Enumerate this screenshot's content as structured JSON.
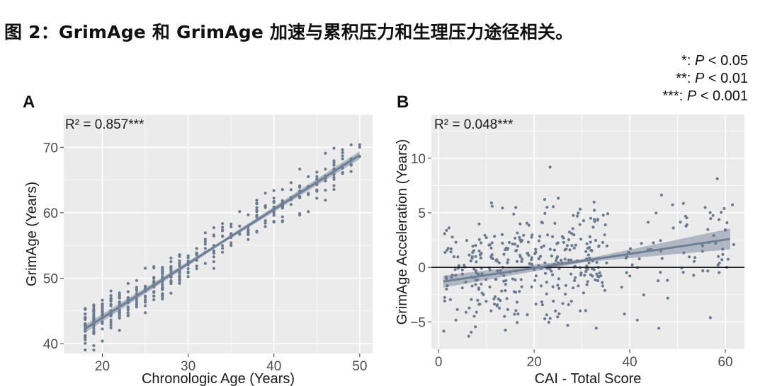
{
  "caption": "图 2：GrimAge 和 GrimAge 加速与累积压力和生理压力途径相关。",
  "significance_legend": [
    {
      "stars": "*:",
      "p": "P",
      "rest": " < 0.05"
    },
    {
      "stars": "**:",
      "p": "P",
      "rest": " < 0.01"
    },
    {
      "stars": "***:",
      "p": "P",
      "rest": " < 0.001"
    }
  ],
  "colors": {
    "panel_bg": "#ebebeb",
    "grid": "#ffffff",
    "points": "#6b7b8f",
    "fit_line": "#6f8096",
    "ci_band": "#9aa6b4",
    "zero_line": "#1a1a1a"
  },
  "chart_data": [
    {
      "panel": "A",
      "type": "scatter",
      "annotation": "R² = 0.857***",
      "xlabel": "Chronologic Age (Years)",
      "ylabel": "GrimAge (Years)",
      "xlim": [
        15.5,
        51.5
      ],
      "ylim": [
        38.5,
        75
      ],
      "xticks": [
        20,
        30,
        40,
        50
      ],
      "yticks": [
        40,
        50,
        60,
        70
      ],
      "fit": {
        "x": [
          18,
          50
        ],
        "y": [
          42.3,
          68.8
        ],
        "ci_halfwidth": [
          0.6,
          0.25,
          0.6
        ]
      },
      "points": {
        "x_range": [
          18,
          50
        ],
        "intercept": 27.4,
        "slope": 0.83,
        "noise": 2.6,
        "n": 420
      }
    },
    {
      "panel": "B",
      "type": "scatter",
      "annotation": "R² = 0.048***",
      "xlabel": "CAI - Total Score",
      "ylabel": "GrimAge Acceleration (Years)",
      "xlim": [
        -1.5,
        64
      ],
      "ylim": [
        -7.5,
        14
      ],
      "xticks": [
        0,
        20,
        40,
        60
      ],
      "yticks": [
        -5,
        0,
        5,
        10
      ],
      "hline": 0,
      "fit": {
        "x": [
          1,
          61
        ],
        "y": [
          -1.3,
          2.6
        ],
        "ci_halfwidth": [
          0.55,
          0.15,
          0.95
        ]
      },
      "points": {
        "x_range": [
          1,
          62
        ],
        "intercept": -1.3,
        "slope": 0.065,
        "noise": 3.0,
        "n": 430
      }
    }
  ]
}
